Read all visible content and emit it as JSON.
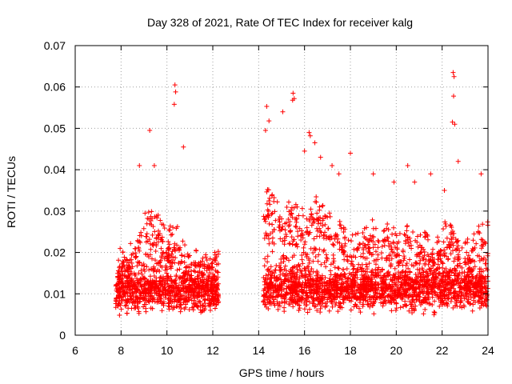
{
  "chart_data": {
    "type": "scatter",
    "title": "Day 328 of 2021, Rate Of TEC Index for receiver kalg",
    "xlabel": "GPS time / hours",
    "ylabel": "ROTI / TECUs",
    "xlim": [
      6,
      24
    ],
    "ylim": [
      0,
      0.07
    ],
    "grid": true,
    "marker": "plus",
    "series_color": "#ff0000",
    "xticks": [
      "6",
      "8",
      "10",
      "12",
      "14",
      "16",
      "18",
      "20",
      "22",
      "24"
    ],
    "yticks": [
      "0",
      "0.01",
      "0.02",
      "0.03",
      "0.04",
      "0.05",
      "0.06",
      "0.07"
    ],
    "segments": [
      {
        "x_range": [
          7.75,
          12.25
        ],
        "baseline": 0.0105,
        "anchors": [
          [
            7.75,
            0.014
          ],
          [
            8.0,
            0.018
          ],
          [
            8.5,
            0.02
          ],
          [
            9.0,
            0.027
          ],
          [
            9.3,
            0.03
          ],
          [
            9.6,
            0.026
          ],
          [
            10.0,
            0.022
          ],
          [
            10.4,
            0.023
          ],
          [
            11.0,
            0.019
          ],
          [
            11.5,
            0.017
          ],
          [
            12.25,
            0.021
          ]
        ]
      },
      {
        "x_range": [
          14.2,
          24.0
        ],
        "baseline": 0.011,
        "anchors": [
          [
            14.2,
            0.03
          ],
          [
            14.5,
            0.032
          ],
          [
            15.0,
            0.026
          ],
          [
            15.5,
            0.03
          ],
          [
            16.0,
            0.027
          ],
          [
            16.5,
            0.03
          ],
          [
            17.0,
            0.026
          ],
          [
            17.5,
            0.024
          ],
          [
            18.0,
            0.021
          ],
          [
            18.5,
            0.023
          ],
          [
            19.0,
            0.025
          ],
          [
            19.5,
            0.024
          ],
          [
            20.0,
            0.022
          ],
          [
            20.5,
            0.025
          ],
          [
            21.0,
            0.022
          ],
          [
            21.5,
            0.02
          ],
          [
            22.0,
            0.023
          ],
          [
            22.5,
            0.025
          ],
          [
            23.0,
            0.02
          ],
          [
            23.5,
            0.022
          ],
          [
            24.0,
            0.024
          ]
        ]
      }
    ],
    "spikes": [
      [
        9.25,
        0.0495
      ],
      [
        10.35,
        0.0605
      ],
      [
        10.38,
        0.0588
      ],
      [
        10.32,
        0.0558
      ],
      [
        10.72,
        0.0455
      ],
      [
        9.45,
        0.041
      ],
      [
        8.8,
        0.041
      ],
      [
        14.35,
        0.0553
      ],
      [
        14.45,
        0.0518
      ],
      [
        14.3,
        0.0495
      ],
      [
        15.5,
        0.0585
      ],
      [
        15.55,
        0.0572
      ],
      [
        15.48,
        0.0568
      ],
      [
        15.05,
        0.054
      ],
      [
        16.2,
        0.049
      ],
      [
        16.25,
        0.0482
      ],
      [
        16.0,
        0.0445
      ],
      [
        16.45,
        0.0465
      ],
      [
        16.7,
        0.043
      ],
      [
        17.2,
        0.041
      ],
      [
        17.5,
        0.039
      ],
      [
        18.0,
        0.044
      ],
      [
        19.0,
        0.039
      ],
      [
        19.9,
        0.037
      ],
      [
        20.5,
        0.041
      ],
      [
        20.8,
        0.037
      ],
      [
        22.48,
        0.0635
      ],
      [
        22.52,
        0.0625
      ],
      [
        22.5,
        0.0578
      ],
      [
        22.45,
        0.0515
      ],
      [
        22.55,
        0.051
      ],
      [
        22.7,
        0.042
      ],
      [
        23.7,
        0.039
      ],
      [
        21.5,
        0.039
      ],
      [
        22.1,
        0.035
      ]
    ]
  }
}
